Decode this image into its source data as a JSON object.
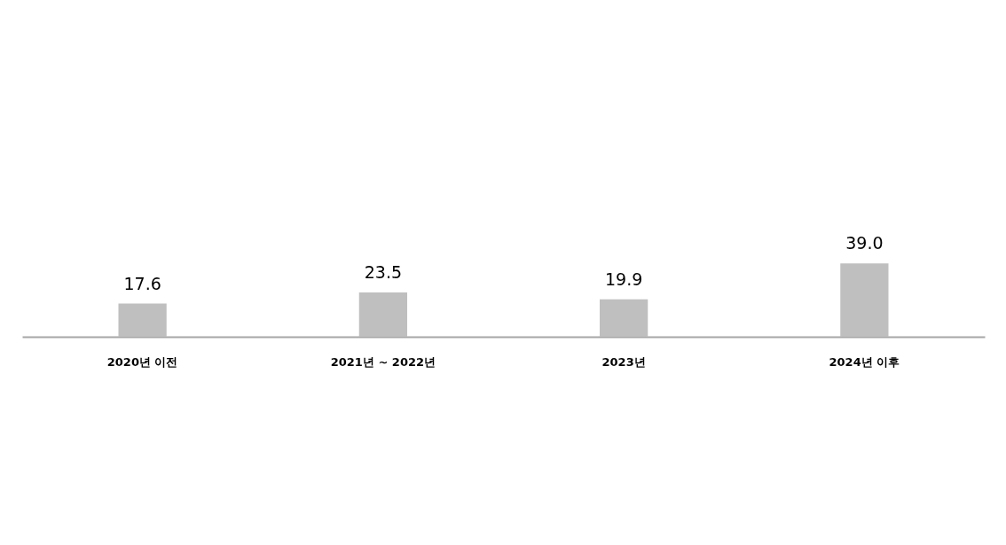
{
  "chart_data": {
    "type": "bar",
    "categories": [
      "2020년 이전",
      "2021년 ~ 2022년",
      "2023년",
      "2024년 이후"
    ],
    "values": [
      17.6,
      23.5,
      19.9,
      39.0
    ],
    "value_labels": [
      "17.6",
      "23.5",
      "19.9",
      "39.0"
    ],
    "color": "#bfbfbf"
  }
}
